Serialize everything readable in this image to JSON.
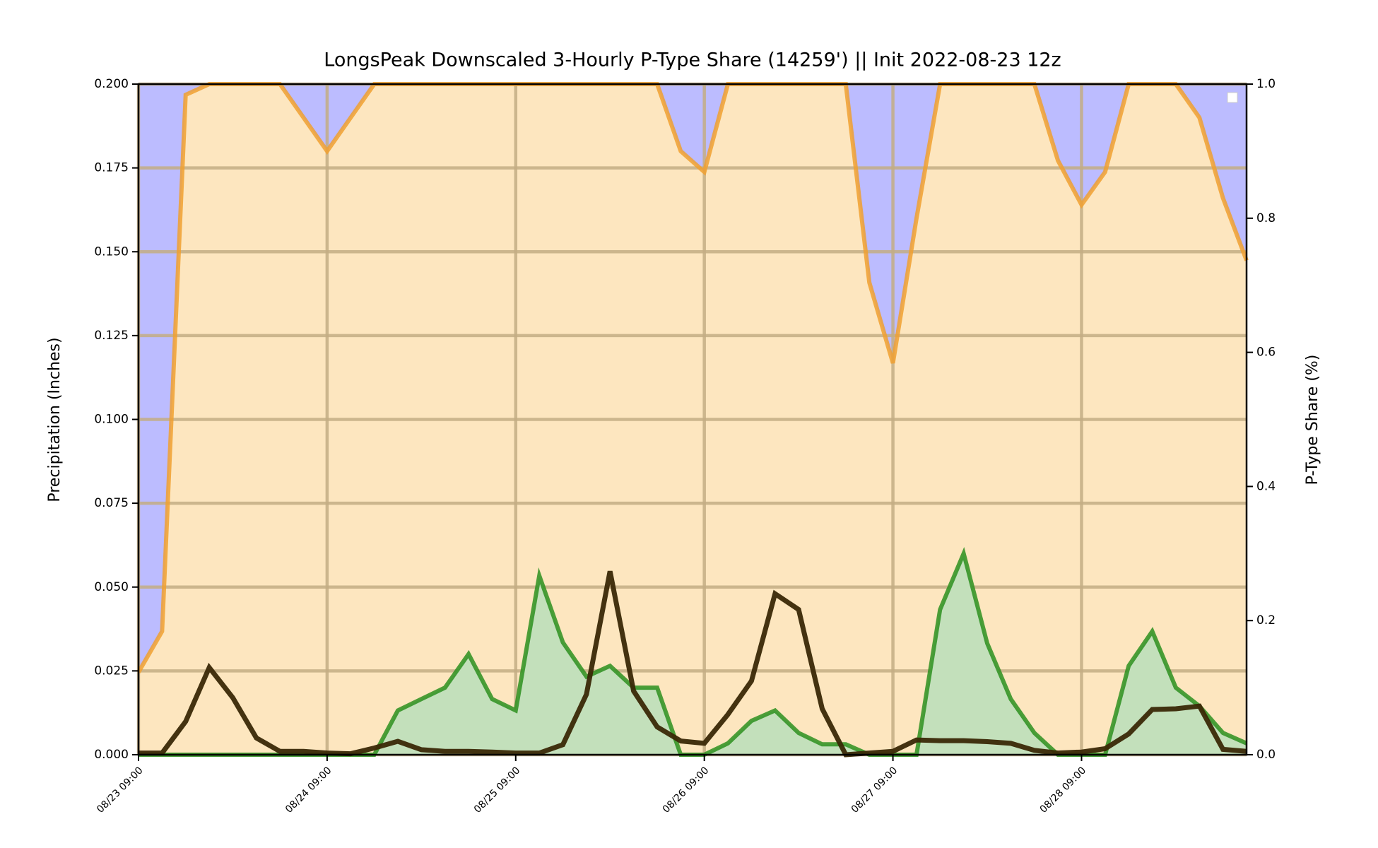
{
  "chart_data": {
    "type": "line",
    "title": "LongsPeak Downscaled 3-Hourly P-Type Share (14259') || Init 2022-08-23 12z",
    "ylabel": "Precipitation (Inches)",
    "y2label": "P-Type Share (%)",
    "categories": [
      "08/23 09:00",
      null,
      null,
      null,
      null,
      null,
      null,
      null,
      "08/24 09:00",
      null,
      null,
      null,
      null,
      null,
      null,
      null,
      "08/25 09:00",
      null,
      null,
      null,
      null,
      null,
      null,
      null,
      "08/26 09:00",
      null,
      null,
      null,
      null,
      null,
      null,
      null,
      "08/27 09:00",
      null,
      null,
      null,
      null,
      null,
      null,
      null,
      "08/28 09:00",
      null,
      null,
      null,
      null,
      null,
      null,
      null
    ],
    "ylim": [
      0,
      0.2
    ],
    "yticks": [
      {
        "value": 0,
        "label": "0.000"
      },
      {
        "value": 0.025,
        "label": "0.025"
      },
      {
        "value": 0.05,
        "label": "0.050"
      },
      {
        "value": 0.075,
        "label": "0.075"
      },
      {
        "value": 0.1,
        "label": "0.100"
      },
      {
        "value": 0.125,
        "label": "0.125"
      },
      {
        "value": 0.15,
        "label": "0.150"
      },
      {
        "value": 0.175,
        "label": "0.175"
      },
      {
        "value": 0.2,
        "label": "0.200"
      }
    ],
    "y2lim": [
      0,
      1
    ],
    "y2ticks": [
      {
        "value": 0,
        "label": "0.0"
      },
      0.2,
      0.4,
      0.6,
      0.8,
      {
        "value": 1,
        "label": "1.0"
      }
    ],
    "grid": true,
    "grid_color": "#c3ad84",
    "series": [
      {
        "color": "#f0a030",
        "fill": "#fde6bf",
        "above_fill": "#bcbcff",
        "axis": "y2",
        "values": [
          0.123,
          0.184,
          0.984,
          1,
          1,
          1,
          1,
          0.95,
          0.9,
          0.95,
          1,
          1,
          1,
          1,
          1,
          1,
          1,
          1,
          1,
          1,
          1,
          1,
          1,
          0.9,
          0.869,
          1,
          1,
          1,
          1,
          1,
          1,
          0.704,
          0.584,
          0.8,
          1,
          1,
          1,
          1,
          1,
          0.886,
          0.82,
          0.869,
          1,
          1,
          1,
          0.95,
          0.83,
          0.737
        ]
      },
      {
        "color": "#2d8f1e",
        "fill": "#c3e0bb",
        "values": [
          0,
          0,
          0,
          0,
          0,
          0,
          0,
          0,
          0,
          0,
          0,
          0.0132,
          0.0166,
          0.02,
          0.03,
          0.0166,
          0.0132,
          0.0534,
          0.0335,
          0.0233,
          0.0265,
          0.02,
          0.02,
          0,
          0,
          0.0034,
          0.0101,
          0.0132,
          0.0065,
          0.0031,
          0.0031,
          0,
          0,
          0,
          0.0433,
          0.06,
          0.0332,
          0.0166,
          0.0065,
          0,
          0,
          0,
          0.0265,
          0.0368,
          0.02,
          0.0145,
          0.0065,
          0.0034
        ]
      },
      {
        "color": "#3a2806",
        "values": [
          0.0005,
          0.0005,
          0.0099,
          0.026,
          0.017,
          0.005,
          0.001,
          0.001,
          0.0005,
          0.0003,
          0.002,
          0.004,
          0.0015,
          0.001,
          0.001,
          0.0008,
          0.0005,
          0.0005,
          0.003,
          0.018,
          0.0547,
          0.019,
          0.0083,
          0.0041,
          0.0034,
          0.012,
          0.022,
          0.048,
          0.0433,
          0.0137,
          0,
          0.0005,
          0.001,
          0.0044,
          0.0042,
          0.0042,
          0.0039,
          0.0034,
          0.0013,
          0.0005,
          0.0008,
          0.0018,
          0.0062,
          0.0135,
          0.0137,
          0.0145,
          0.0016,
          0.001
        ]
      }
    ]
  }
}
